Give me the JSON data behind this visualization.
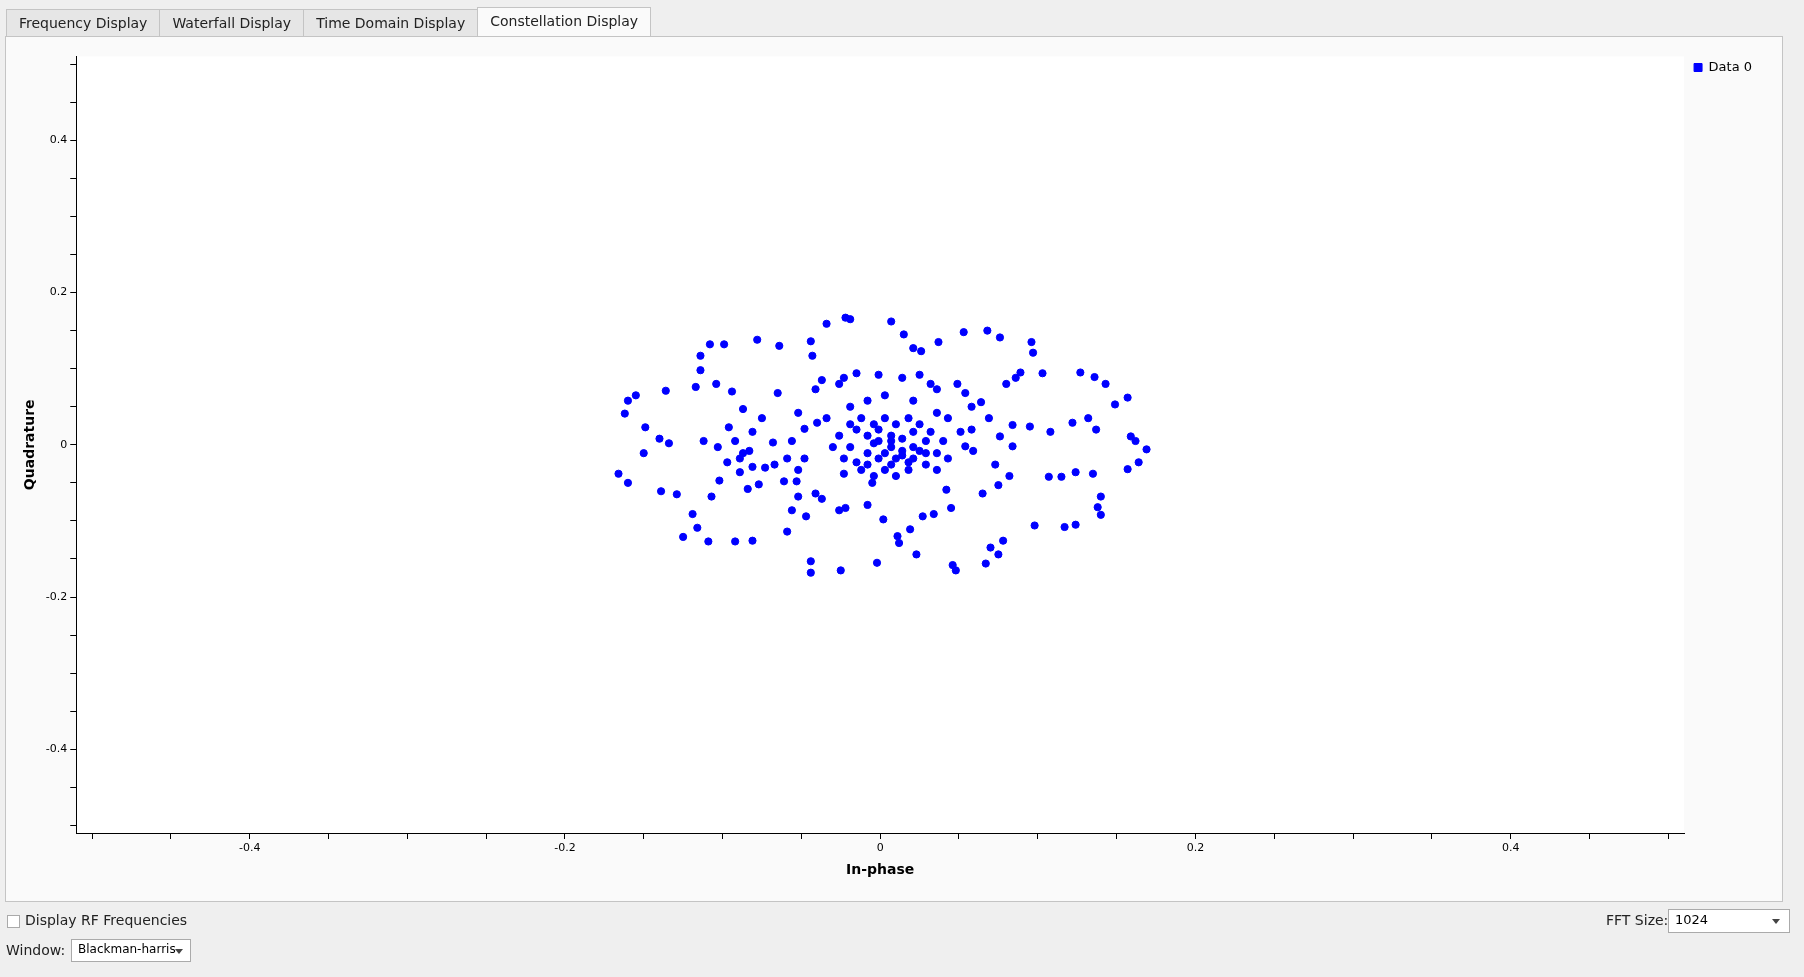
{
  "chart_data": {
    "type": "scatter",
    "xlabel": "In-phase",
    "ylabel": "Quadrature",
    "annotations": [
      "Frequency Display",
      "Waterfall Display",
      "Time Domain Display",
      "Constellation Display",
      "Display RF Frequencies",
      "FFT Size:",
      "1024",
      "Window:",
      "Blackman-harris"
    ],
    "xlim": [
      -0.51,
      0.51
    ],
    "ylim": [
      -0.51,
      0.51
    ],
    "xticks": [
      {
        "value": -0.5,
        "label": null
      },
      {
        "value": -0.45,
        "label": null
      },
      -0.4,
      {
        "value": -0.35,
        "label": null
      },
      {
        "value": -0.3,
        "label": null
      },
      {
        "value": -0.25,
        "label": null
      },
      -0.2,
      {
        "value": -0.15,
        "label": null
      },
      {
        "value": -0.1,
        "label": null
      },
      {
        "value": -0.05,
        "label": null
      },
      0,
      {
        "value": 0.05,
        "label": null
      },
      {
        "value": 0.1,
        "label": null
      },
      {
        "value": 0.15,
        "label": null
      },
      0.2,
      {
        "value": 0.25,
        "label": null
      },
      {
        "value": 0.3,
        "label": null
      },
      {
        "value": 0.35,
        "label": null
      },
      0.4,
      {
        "value": 0.45,
        "label": null
      },
      {
        "value": 0.5,
        "label": null
      }
    ],
    "yticks": [
      {
        "value": -0.5,
        "label": null
      },
      {
        "value": -0.45,
        "label": null
      },
      -0.4,
      {
        "value": -0.35,
        "label": null
      },
      {
        "value": -0.3,
        "label": null
      },
      {
        "value": -0.25,
        "label": null
      },
      -0.2,
      {
        "value": -0.15,
        "label": null
      },
      {
        "value": -0.1,
        "label": null
      },
      {
        "value": -0.05,
        "label": null
      },
      0,
      {
        "value": 0.05,
        "label": null
      },
      {
        "value": 0.1,
        "label": null
      },
      {
        "value": 0.15,
        "label": null
      },
      0.2,
      {
        "value": 0.25,
        "label": null
      },
      {
        "value": 0.3,
        "label": null
      },
      {
        "value": 0.35,
        "label": null
      },
      0.4,
      {
        "value": 0.45,
        "label": null
      },
      {
        "value": 0.5,
        "label": null
      }
    ],
    "grid": false,
    "legend": "top right",
    "marker": "circle",
    "series": [
      {
        "name": "Data 0",
        "color": "#0000ff",
        "x": [
          -0.166,
          -0.162,
          -0.16,
          -0.16,
          -0.155,
          -0.15,
          -0.149,
          -0.139,
          -0.14,
          -0.136,
          -0.134,
          -0.129,
          -0.125,
          -0.119,
          -0.117,
          -0.116,
          -0.114,
          -0.114,
          -0.112,
          -0.109,
          -0.107,
          -0.108,
          -0.104,
          -0.102,
          -0.099,
          -0.097,
          -0.092,
          -0.094,
          -0.089,
          -0.087,
          -0.084,
          -0.083,
          -0.081,
          -0.078,
          -0.081,
          -0.075,
          -0.068,
          -0.064,
          -0.065,
          -0.059,
          -0.052,
          -0.044,
          -0.043,
          -0.044,
          -0.044,
          -0.034,
          -0.025,
          -0.022,
          -0.019,
          -0.002,
          0.007,
          0.015,
          0.021,
          0.023,
          0.026,
          0.037,
          0.046,
          0.053,
          0.048,
          0.067,
          0.068,
          0.07,
          0.076,
          0.075,
          0.078,
          0.08,
          0.086,
          0.089,
          0.096,
          0.097,
          0.103,
          0.095,
          0.098,
          0.108,
          0.107,
          0.115,
          0.117,
          0.122,
          0.127,
          0.124,
          0.124,
          0.136,
          0.132,
          0.135,
          0.138,
          0.14,
          0.14,
          0.137,
          0.143,
          0.149,
          0.157,
          0.159,
          0.162,
          0.169,
          0.164,
          0.157,
          0.076,
          0.084,
          0.073,
          0.082,
          0.084,
          0.075,
          0.058,
          0.064,
          0.069,
          0.054,
          0.049,
          0.054,
          0.059,
          0.065,
          0.045,
          0.042,
          0.034,
          0.027,
          0.019,
          0.011,
          0.012,
          0.002,
          -0.005,
          -0.008,
          -0.022,
          -0.026,
          -0.037,
          -0.041,
          -0.047,
          -0.056,
          -0.053,
          -0.061,
          -0.048,
          -0.056,
          -0.052,
          -0.041,
          -0.037,
          -0.026,
          -0.023,
          -0.015,
          -0.001,
          0.014,
          0.025,
          0.032,
          0.036,
          0.003,
          -0.008,
          -0.019,
          0.021,
          0.036,
          0.043,
          -0.034,
          -0.04,
          -0.048,
          0.058,
          0.051,
          -0.052,
          -0.059,
          -0.067,
          -0.073,
          -0.077,
          -0.081,
          -0.089,
          -0.092,
          -0.096,
          -0.103,
          -0.087,
          -0.015,
          -0.008,
          -0.001,
          0.007,
          0.014,
          0.021,
          0.029,
          0.036,
          -0.008,
          -0.001,
          0.007,
          0.014,
          0.021,
          -0.019,
          -0.023,
          -0.012,
          -0.004,
          0.003,
          0.01,
          0.018,
          0.029,
          0.032,
          -0.004,
          0.003,
          0.01,
          0.018,
          0.025,
          -0.026,
          -0.03,
          -0.019,
          -0.012,
          -0.001,
          0.007,
          0.014,
          0.021,
          0.029,
          0.04,
          0.043,
          0.036,
          -0.015,
          -0.023,
          -0.008,
          0.003,
          0.01,
          0.018,
          0.025,
          -0.004,
          0.007
        ],
        "values": [
          -0.038,
          0.041,
          0.058,
          -0.05,
          0.065,
          -0.011,
          0.023,
          -0.061,
          0.008,
          0.071,
          0.002,
          -0.065,
          -0.121,
          -0.091,
          0.076,
          -0.109,
          0.098,
          0.117,
          0.005,
          -0.127,
          -0.068,
          0.132,
          0.08,
          -0.047,
          0.132,
          -0.023,
          -0.127,
          0.07,
          -0.036,
          0.047,
          -0.058,
          -0.008,
          -0.126,
          0.138,
          0.017,
          0.035,
          0.003,
          0.13,
          0.068,
          -0.114,
          -0.068,
          0.136,
          0.117,
          -0.153,
          -0.168,
          0.159,
          -0.165,
          0.167,
          0.165,
          -0.155,
          0.162,
          0.145,
          0.127,
          -0.144,
          0.123,
          0.135,
          -0.158,
          0.148,
          -0.165,
          -0.156,
          0.15,
          -0.135,
          0.141,
          -0.144,
          -0.126,
          0.08,
          0.088,
          0.095,
          0.135,
          0.121,
          0.094,
          0.024,
          -0.106,
          0.017,
          -0.042,
          -0.042,
          -0.108,
          0.029,
          0.095,
          -0.105,
          -0.036,
          0.089,
          0.035,
          -0.038,
          -0.082,
          -0.068,
          -0.092,
          0.02,
          0.08,
          0.053,
          0.062,
          0.011,
          0.005,
          -0.006,
          -0.023,
          -0.032,
          0.011,
          -0.002,
          -0.026,
          -0.041,
          0.026,
          -0.053,
          0.05,
          0.056,
          0.035,
          0.068,
          0.08,
          -0.002,
          -0.008,
          -0.064,
          -0.083,
          -0.059,
          -0.091,
          -0.094,
          -0.111,
          -0.12,
          -0.129,
          -0.098,
          -0.05,
          -0.079,
          -0.083,
          -0.086,
          -0.071,
          -0.064,
          -0.094,
          -0.086,
          -0.048,
          -0.048,
          -0.018,
          0.005,
          0.042,
          0.073,
          0.085,
          0.08,
          0.088,
          0.094,
          0.092,
          0.088,
          0.092,
          0.08,
          0.073,
          0.065,
          0.058,
          0.05,
          0.058,
          0.042,
          0.035,
          0.035,
          0.029,
          0.021,
          0.02,
          0.017,
          -0.033,
          -0.018,
          -0.026,
          -0.03,
          -0.052,
          -0.029,
          -0.018,
          0.005,
          0.023,
          -0.003,
          -0.011,
          0.02,
          0.012,
          0.005,
          -0.003,
          0.008,
          0.017,
          0.005,
          -0.011,
          -0.011,
          -0.018,
          -0.026,
          -0.014,
          -0.018,
          -0.003,
          -0.018,
          -0.033,
          -0.041,
          -0.033,
          -0.041,
          -0.033,
          -0.026,
          0.017,
          0.027,
          0.035,
          0.027,
          0.035,
          0.027,
          0.012,
          -0.003,
          0.027,
          0.035,
          0.02,
          0.012,
          -0.008,
          -0.003,
          -0.011,
          0.005,
          -0.018,
          -0.033,
          -0.023,
          -0.038,
          -0.026,
          -0.011,
          -0.018,
          -0.023,
          -0.008,
          0.002,
          0.005
        ]
      }
    ]
  }
}
